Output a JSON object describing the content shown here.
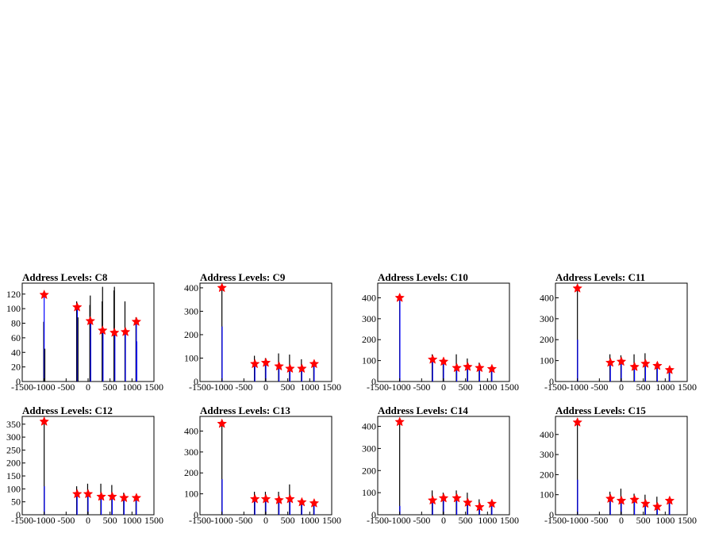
{
  "chart_data": [
    {
      "type": "histogram",
      "title": "Address Levels: C8",
      "xlim": [
        -1500,
        1500
      ],
      "ylim": [
        0,
        135
      ],
      "xticks": [
        -1500,
        -1000,
        -500,
        0,
        500,
        1000,
        1500
      ],
      "yticks": [
        0,
        20,
        40,
        60,
        80,
        100,
        120
      ],
      "markers": [
        [
          -1000,
          119
        ],
        [
          -250,
          102
        ],
        [
          50,
          83
        ],
        [
          330,
          70
        ],
        [
          600,
          67
        ],
        [
          850,
          68
        ],
        [
          1100,
          82
        ]
      ],
      "spikes": [
        [
          -1010,
          82,
          0
        ],
        [
          -1000,
          119,
          1
        ],
        [
          -985,
          45,
          0
        ],
        [
          -260,
          110,
          0
        ],
        [
          -245,
          102,
          1
        ],
        [
          -230,
          88,
          0
        ],
        [
          40,
          105,
          0
        ],
        [
          50,
          118,
          0
        ],
        [
          60,
          83,
          1
        ],
        [
          320,
          110,
          0
        ],
        [
          330,
          130,
          0
        ],
        [
          340,
          70,
          1
        ],
        [
          590,
          125,
          0
        ],
        [
          600,
          130,
          0
        ],
        [
          610,
          67,
          1
        ],
        [
          840,
          110,
          0
        ],
        [
          850,
          68,
          1
        ],
        [
          1090,
          88,
          0
        ],
        [
          1100,
          82,
          1
        ],
        [
          1110,
          55,
          1
        ]
      ]
    },
    {
      "type": "histogram",
      "title": "Address Levels: C9",
      "xlim": [
        -1500,
        1500
      ],
      "ylim": [
        0,
        420
      ],
      "xticks": [
        -1500,
        -1000,
        -500,
        0,
        500,
        1000,
        1500
      ],
      "yticks": [
        0,
        100,
        200,
        300,
        400
      ],
      "markers": [
        [
          -1000,
          400
        ],
        [
          -250,
          75
        ],
        [
          0,
          80
        ],
        [
          300,
          65
        ],
        [
          550,
          55
        ],
        [
          820,
          55
        ],
        [
          1100,
          75
        ]
      ],
      "spikes": [
        [
          -1000,
          400,
          0
        ],
        [
          -995,
          235,
          1
        ],
        [
          -260,
          110,
          0
        ],
        [
          -250,
          75,
          1
        ],
        [
          -10,
          100,
          0
        ],
        [
          0,
          80,
          1
        ],
        [
          290,
          120,
          0
        ],
        [
          300,
          65,
          1
        ],
        [
          540,
          115,
          0
        ],
        [
          550,
          55,
          1
        ],
        [
          810,
          95,
          0
        ],
        [
          820,
          55,
          1
        ],
        [
          1090,
          75,
          0
        ],
        [
          1100,
          75,
          1
        ]
      ]
    },
    {
      "type": "histogram",
      "title": "Address Levels: C10",
      "xlim": [
        -1500,
        1500
      ],
      "ylim": [
        0,
        470
      ],
      "xticks": [
        -1500,
        -1000,
        -500,
        0,
        500,
        1000,
        1500
      ],
      "yticks": [
        0,
        100,
        200,
        300,
        400
      ],
      "markers": [
        [
          -1000,
          400
        ],
        [
          -250,
          105
        ],
        [
          0,
          95
        ],
        [
          300,
          65
        ],
        [
          550,
          70
        ],
        [
          820,
          65
        ],
        [
          1100,
          60
        ]
      ],
      "spikes": [
        [
          -1000,
          410,
          0
        ],
        [
          -995,
          400,
          1
        ],
        [
          -260,
          130,
          0
        ],
        [
          -250,
          105,
          1
        ],
        [
          -10,
          110,
          0
        ],
        [
          0,
          95,
          1
        ],
        [
          290,
          130,
          0
        ],
        [
          300,
          65,
          1
        ],
        [
          540,
          110,
          0
        ],
        [
          550,
          70,
          1
        ],
        [
          810,
          90,
          0
        ],
        [
          820,
          65,
          1
        ],
        [
          1090,
          70,
          0
        ],
        [
          1100,
          60,
          1
        ]
      ]
    },
    {
      "type": "histogram",
      "title": "Address Levels: C11",
      "xlim": [
        -1500,
        1500
      ],
      "ylim": [
        0,
        470
      ],
      "xticks": [
        -1500,
        -1000,
        -500,
        0,
        500,
        1000,
        1500
      ],
      "yticks": [
        0,
        100,
        200,
        300,
        400
      ],
      "markers": [
        [
          -1000,
          445
        ],
        [
          -250,
          90
        ],
        [
          0,
          95
        ],
        [
          300,
          70
        ],
        [
          550,
          85
        ],
        [
          820,
          75
        ],
        [
          1100,
          55
        ]
      ],
      "spikes": [
        [
          -1000,
          445,
          0
        ],
        [
          -995,
          200,
          1
        ],
        [
          -260,
          130,
          0
        ],
        [
          -250,
          90,
          1
        ],
        [
          -10,
          125,
          0
        ],
        [
          0,
          95,
          1
        ],
        [
          290,
          130,
          0
        ],
        [
          300,
          70,
          1
        ],
        [
          540,
          135,
          0
        ],
        [
          550,
          85,
          1
        ],
        [
          810,
          90,
          0
        ],
        [
          820,
          75,
          1
        ],
        [
          1090,
          70,
          0
        ],
        [
          1100,
          55,
          1
        ]
      ]
    },
    {
      "type": "histogram",
      "title": "Address Levels: C12",
      "xlim": [
        -1500,
        1500
      ],
      "ylim": [
        0,
        380
      ],
      "xticks": [
        -1500,
        -1000,
        -500,
        0,
        500,
        1000,
        1500
      ],
      "yticks": [
        0,
        50,
        100,
        150,
        200,
        250,
        300,
        350
      ],
      "markers": [
        [
          -1000,
          360
        ],
        [
          -250,
          80
        ],
        [
          0,
          80
        ],
        [
          300,
          70
        ],
        [
          550,
          70
        ],
        [
          820,
          65
        ],
        [
          1100,
          65
        ]
      ],
      "spikes": [
        [
          -1000,
          360,
          0
        ],
        [
          -995,
          110,
          1
        ],
        [
          -260,
          110,
          0
        ],
        [
          -250,
          80,
          1
        ],
        [
          -10,
          120,
          0
        ],
        [
          0,
          80,
          1
        ],
        [
          290,
          120,
          0
        ],
        [
          300,
          70,
          1
        ],
        [
          540,
          115,
          0
        ],
        [
          550,
          70,
          1
        ],
        [
          810,
          85,
          0
        ],
        [
          820,
          65,
          1
        ],
        [
          1090,
          75,
          0
        ],
        [
          1100,
          65,
          1
        ]
      ]
    },
    {
      "type": "histogram",
      "title": "Address Levels: C13",
      "xlim": [
        -1500,
        1500
      ],
      "ylim": [
        0,
        470
      ],
      "xticks": [
        -1500,
        -1000,
        -500,
        0,
        500,
        1000,
        1500
      ],
      "yticks": [
        0,
        100,
        200,
        300,
        400
      ],
      "markers": [
        [
          -1000,
          435
        ],
        [
          -250,
          75
        ],
        [
          0,
          75
        ],
        [
          300,
          70
        ],
        [
          550,
          75
        ],
        [
          820,
          60
        ],
        [
          1100,
          55
        ]
      ],
      "spikes": [
        [
          -1000,
          435,
          0
        ],
        [
          -995,
          170,
          1
        ],
        [
          -260,
          110,
          0
        ],
        [
          -250,
          75,
          1
        ],
        [
          -10,
          110,
          0
        ],
        [
          0,
          75,
          1
        ],
        [
          290,
          110,
          0
        ],
        [
          300,
          70,
          1
        ],
        [
          540,
          145,
          0
        ],
        [
          550,
          75,
          1
        ],
        [
          810,
          70,
          0
        ],
        [
          820,
          60,
          1
        ],
        [
          1090,
          65,
          0
        ],
        [
          1100,
          55,
          1
        ]
      ]
    },
    {
      "type": "histogram",
      "title": "Address Levels: C14",
      "xlim": [
        -1500,
        1500
      ],
      "ylim": [
        0,
        445
      ],
      "xticks": [
        -1500,
        -1000,
        -500,
        0,
        500,
        1000,
        1500
      ],
      "yticks": [
        0,
        100,
        200,
        300,
        400
      ],
      "markers": [
        [
          -1000,
          420
        ],
        [
          -250,
          65
        ],
        [
          0,
          75
        ],
        [
          300,
          75
        ],
        [
          550,
          55
        ],
        [
          820,
          35
        ],
        [
          1100,
          50
        ]
      ],
      "spikes": [
        [
          -1000,
          420,
          0
        ],
        [
          -995,
          40,
          1
        ],
        [
          -260,
          110,
          0
        ],
        [
          -250,
          65,
          1
        ],
        [
          -10,
          100,
          0
        ],
        [
          0,
          75,
          1
        ],
        [
          290,
          110,
          0
        ],
        [
          300,
          75,
          1
        ],
        [
          540,
          100,
          0
        ],
        [
          550,
          55,
          1
        ],
        [
          810,
          70,
          0
        ],
        [
          820,
          35,
          1
        ],
        [
          1090,
          65,
          0
        ],
        [
          1100,
          50,
          1
        ]
      ]
    },
    {
      "type": "histogram",
      "title": "Address Levels: C15",
      "xlim": [
        -1500,
        1500
      ],
      "ylim": [
        0,
        490
      ],
      "xticks": [
        -1500,
        -1000,
        -500,
        0,
        500,
        1000,
        1500
      ],
      "yticks": [
        0,
        100,
        200,
        300,
        400
      ],
      "markers": [
        [
          -1000,
          460
        ],
        [
          -250,
          80
        ],
        [
          0,
          70
        ],
        [
          300,
          75
        ],
        [
          550,
          55
        ],
        [
          820,
          40
        ],
        [
          1100,
          70
        ]
      ],
      "spikes": [
        [
          -1000,
          460,
          0
        ],
        [
          -995,
          175,
          1
        ],
        [
          -260,
          115,
          0
        ],
        [
          -250,
          80,
          1
        ],
        [
          -10,
          130,
          0
        ],
        [
          0,
          70,
          1
        ],
        [
          290,
          105,
          0
        ],
        [
          300,
          75,
          1
        ],
        [
          540,
          100,
          0
        ],
        [
          550,
          55,
          1
        ],
        [
          810,
          90,
          0
        ],
        [
          820,
          40,
          1
        ],
        [
          1090,
          70,
          0
        ],
        [
          1100,
          70,
          1
        ]
      ]
    }
  ],
  "colors": {
    "frame": "#000000",
    "spike_primary": "#000000",
    "spike_secondary": "#0000ff",
    "marker": "#ff0000"
  }
}
